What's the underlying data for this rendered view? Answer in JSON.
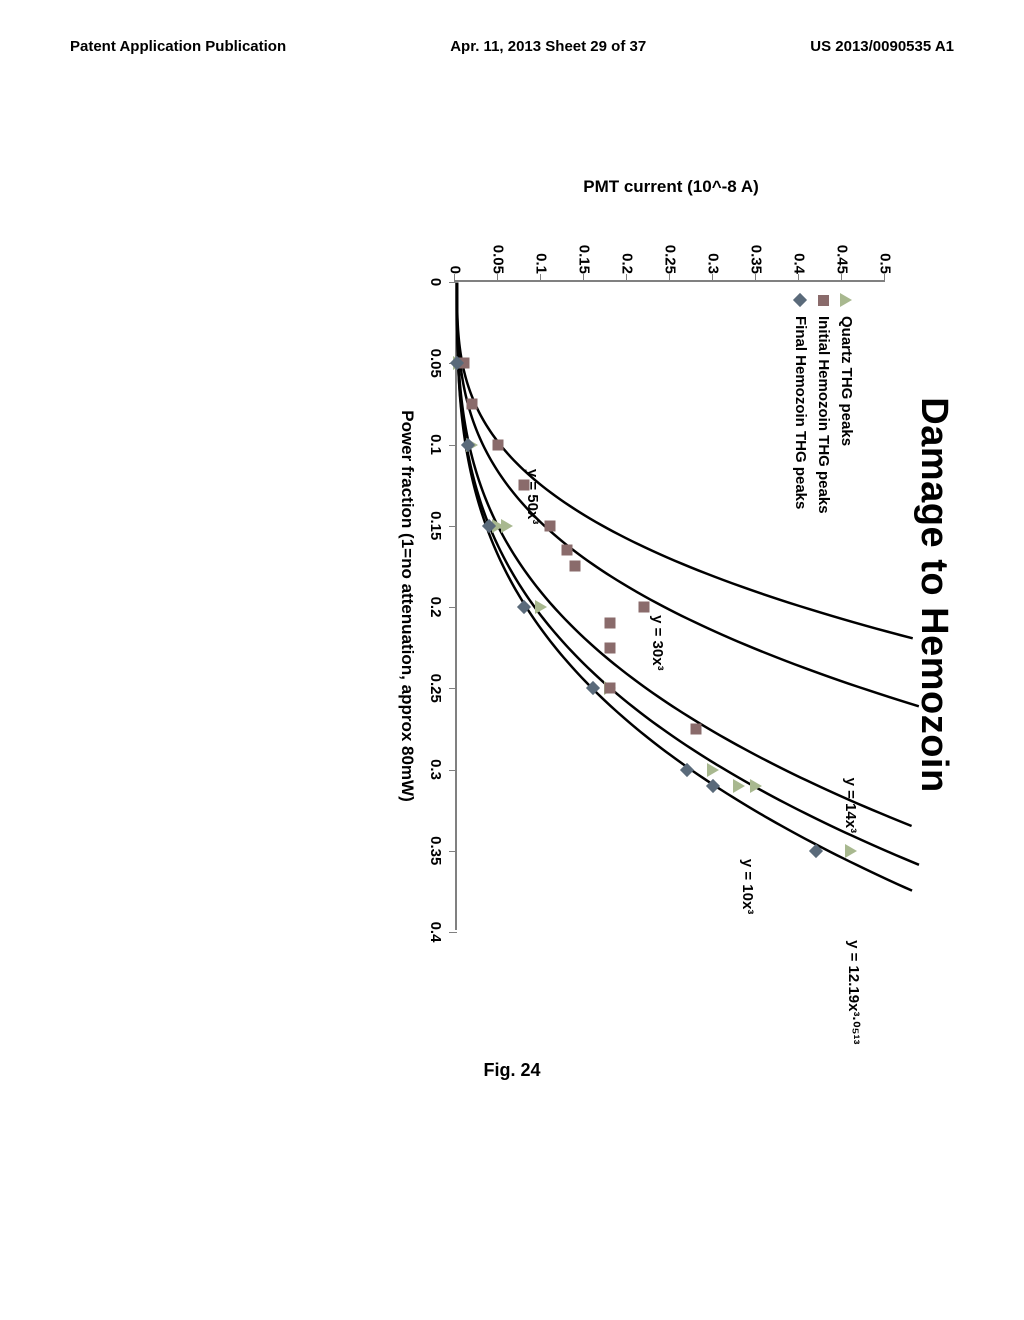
{
  "header": {
    "left": "Patent Application Publication",
    "center": "Apr. 11, 2013  Sheet 29 of 37",
    "right": "US 2013/0090535 A1"
  },
  "figure_caption": "Fig. 24",
  "chart": {
    "type": "line-scatter",
    "title": "Damage to Hemozoin",
    "x_axis": {
      "title": "Power fraction (1=no attenuation, approx 80mW)",
      "ticks": [
        0,
        0.05,
        0.1,
        0.15,
        0.2,
        0.25,
        0.3,
        0.35,
        0.4
      ],
      "min": 0,
      "max": 0.4
    },
    "y_axis": {
      "title": "PMT current (10^-8 A)",
      "ticks": [
        0,
        0.05,
        0.1,
        0.15,
        0.2,
        0.25,
        0.3,
        0.35,
        0.4,
        0.45,
        0.5
      ],
      "min": 0,
      "max": 0.5
    },
    "background_color": "#ffffff",
    "axis_color": "#808080",
    "tick_fontsize": 15,
    "title_fontsize": 38,
    "label_fontsize": 17,
    "legend": {
      "position": "upper-left-inside",
      "items": [
        {
          "marker": "triangle",
          "color": "#a8b88f",
          "label": "Quartz THG peaks"
        },
        {
          "marker": "square",
          "color": "#8a6b6b",
          "label": "Initial Hemozoin THG peaks"
        },
        {
          "marker": "diamond",
          "color": "#5a6a7a",
          "label": "Final Hemozoin THG peaks"
        }
      ]
    },
    "curves": [
      {
        "formula": "y = 50x³",
        "coef": 50,
        "color": "#000000",
        "label_pos": {
          "x": 0.115,
          "y": 0.1
        }
      },
      {
        "formula": "y = 30x³",
        "coef": 30,
        "color": "#000000",
        "label_pos": {
          "x": 0.205,
          "y": 0.245
        }
      },
      {
        "formula": "y = 14x³",
        "coef": 14,
        "color": "#000000",
        "label_pos": {
          "x": 0.305,
          "y": 0.47
        }
      },
      {
        "formula": "y = 12.19x³·⁰⁵¹³",
        "coef": 12.19,
        "exp": 3.0513,
        "color": "#000000",
        "label_pos": {
          "x": 0.405,
          "y": 0.475
        }
      },
      {
        "formula": "y = 10x³",
        "coef": 10,
        "color": "#000000",
        "label_pos": {
          "x": 0.355,
          "y": 0.35
        }
      }
    ],
    "series": [
      {
        "name": "Quartz THG peaks",
        "marker": "triangle",
        "color": "#a8b88f",
        "points": [
          {
            "x": 0.05,
            "y": 0.005
          },
          {
            "x": 0.1,
            "y": 0.02
          },
          {
            "x": 0.15,
            "y": 0.05
          },
          {
            "x": 0.15,
            "y": 0.06
          },
          {
            "x": 0.2,
            "y": 0.1
          },
          {
            "x": 0.25,
            "y": 0.18
          },
          {
            "x": 0.3,
            "y": 0.3
          },
          {
            "x": 0.31,
            "y": 0.33
          },
          {
            "x": 0.31,
            "y": 0.35
          },
          {
            "x": 0.35,
            "y": 0.46
          }
        ]
      },
      {
        "name": "Initial Hemozoin THG peaks",
        "marker": "square",
        "color": "#8a6b6b",
        "points": [
          {
            "x": 0.05,
            "y": 0.01
          },
          {
            "x": 0.075,
            "y": 0.02
          },
          {
            "x": 0.1,
            "y": 0.05
          },
          {
            "x": 0.125,
            "y": 0.08
          },
          {
            "x": 0.15,
            "y": 0.11
          },
          {
            "x": 0.165,
            "y": 0.13
          },
          {
            "x": 0.175,
            "y": 0.14
          },
          {
            "x": 0.2,
            "y": 0.22
          },
          {
            "x": 0.21,
            "y": 0.18
          },
          {
            "x": 0.225,
            "y": 0.18
          },
          {
            "x": 0.25,
            "y": 0.18
          },
          {
            "x": 0.275,
            "y": 0.28
          }
        ]
      },
      {
        "name": "Final Hemozoin THG peaks",
        "marker": "diamond",
        "color": "#5a6a7a",
        "points": [
          {
            "x": 0.05,
            "y": 0.002
          },
          {
            "x": 0.1,
            "y": 0.015
          },
          {
            "x": 0.15,
            "y": 0.04
          },
          {
            "x": 0.2,
            "y": 0.08
          },
          {
            "x": 0.25,
            "y": 0.16
          },
          {
            "x": 0.3,
            "y": 0.27
          },
          {
            "x": 0.31,
            "y": 0.3
          },
          {
            "x": 0.35,
            "y": 0.42
          }
        ]
      }
    ]
  }
}
